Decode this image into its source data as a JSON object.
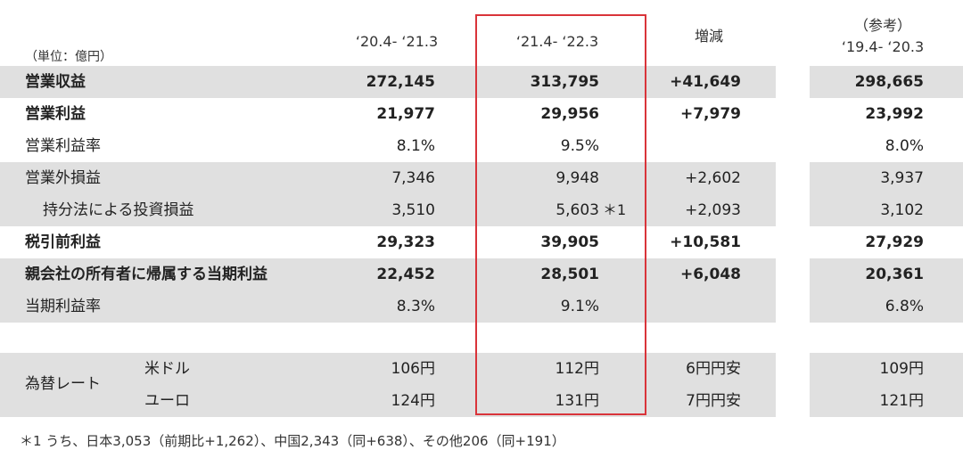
{
  "headers": {
    "unit": "（単位：億円）",
    "col1": "‘20.4- ‘21.3",
    "col2": "‘21.4- ‘22.3",
    "col3": "増減",
    "col4_line1": "（参考）",
    "col4_line2": "‘19.4- ‘20.3"
  },
  "rows": [
    {
      "label": "営業収益",
      "c1": "272,145",
      "c2": "313,795",
      "note": "",
      "c3": "+41,649",
      "c4": "298,665"
    },
    {
      "label": "営業利益",
      "c1": "21,977",
      "c2": "29,956",
      "note": "",
      "c3": "+7,979",
      "c4": "23,992"
    },
    {
      "label": "営業利益率",
      "c1": "8.1%",
      "c2": "9.5%",
      "note": "",
      "c3": "",
      "c4": "8.0%"
    },
    {
      "label": "営業外損益",
      "c1": "7,346",
      "c2": "9,948",
      "note": "",
      "c3": "+2,602",
      "c4": "3,937"
    },
    {
      "label": "持分法による投資損益",
      "c1": "3,510",
      "c2": "5,603",
      "note": "＊1",
      "c3": "+2,093",
      "c4": "3,102"
    },
    {
      "label": "税引前利益",
      "c1": "29,323",
      "c2": "39,905",
      "note": "",
      "c3": "+10,581",
      "c4": "27,929"
    },
    {
      "label": "親会社の所有者に帰属する当期利益",
      "c1": "22,452",
      "c2": "28,501",
      "note": "",
      "c3": "+6,048",
      "c4": "20,361"
    },
    {
      "label": "当期利益率",
      "c1": "8.3%",
      "c2": "9.1%",
      "note": "",
      "c3": "",
      "c4": "6.8%"
    }
  ],
  "fx": {
    "label": "為替レート",
    "usd": {
      "label": "米ドル",
      "c1": "106円",
      "c2": "112円",
      "c3": "6円円安",
      "c4": "109円"
    },
    "eur": {
      "label": "ユーロ",
      "c1": "124円",
      "c2": "131円",
      "c3": "7円円安",
      "c4": "121円"
    }
  },
  "footnote": "＊1 うち、日本3,053（前期比+1,262）、中国2,343（同+638）、その他206（同+191）",
  "colors": {
    "highlight_border": "#d9343a",
    "row_shading": "#e0e0e0"
  }
}
